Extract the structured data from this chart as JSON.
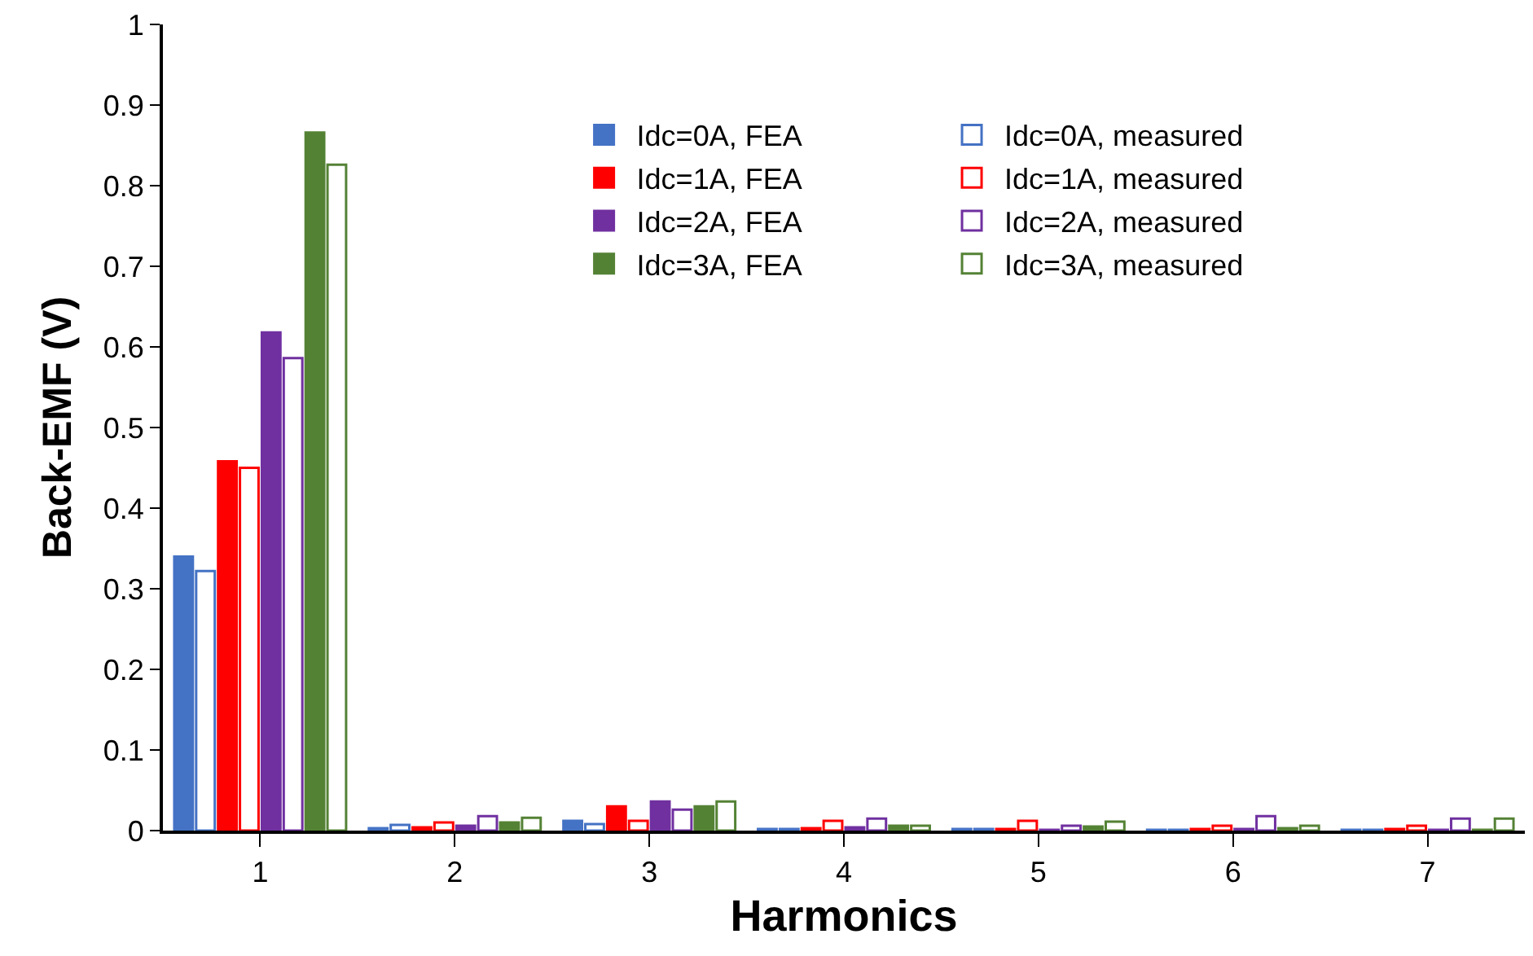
{
  "chart_data": {
    "type": "bar",
    "xlabel": "Harmonics",
    "ylabel": "Back-EMF (V)",
    "categories": [
      "1",
      "2",
      "3",
      "4",
      "5",
      "6",
      "7"
    ],
    "ylim": [
      0,
      1
    ],
    "yticks": [
      0,
      0.1,
      0.2,
      0.3,
      0.4,
      0.5,
      0.6,
      0.7,
      0.8,
      0.9,
      1
    ],
    "grid": false,
    "legend": "top",
    "series": [
      {
        "name": "Idc=0A, FEA",
        "color": "#4472c4",
        "values": [
          0.34,
          0.003,
          0.012,
          0.002,
          0.002,
          0.001,
          0.001
        ]
      },
      {
        "name": "Idc=0A, measured",
        "color": "#4472c4",
        "values": [
          0.322,
          0.007,
          0.008,
          0.002,
          0.002,
          0.001,
          0.001
        ]
      },
      {
        "name": "Idc=1A, FEA",
        "color": "#ff0000",
        "values": [
          0.458,
          0.004,
          0.03,
          0.003,
          0.002,
          0.002,
          0.002
        ]
      },
      {
        "name": "Idc=1A, measured",
        "color": "#ff0000",
        "values": [
          0.45,
          0.01,
          0.012,
          0.012,
          0.012,
          0.006,
          0.006
        ]
      },
      {
        "name": "Idc=2A, FEA",
        "color": "#7030a0",
        "values": [
          0.618,
          0.006,
          0.036,
          0.004,
          0.001,
          0.002,
          0.001
        ]
      },
      {
        "name": "Idc=2A, measured",
        "color": "#7030a0",
        "values": [
          0.586,
          0.018,
          0.026,
          0.015,
          0.006,
          0.018,
          0.015
        ]
      },
      {
        "name": "Idc=3A, FEA",
        "color": "#548235",
        "values": [
          0.866,
          0.01,
          0.03,
          0.006,
          0.005,
          0.003,
          0.001
        ]
      },
      {
        "name": "Idc=3A, measured",
        "color": "#548235",
        "values": [
          0.826,
          0.016,
          0.036,
          0.006,
          0.011,
          0.006,
          0.015
        ]
      }
    ]
  }
}
